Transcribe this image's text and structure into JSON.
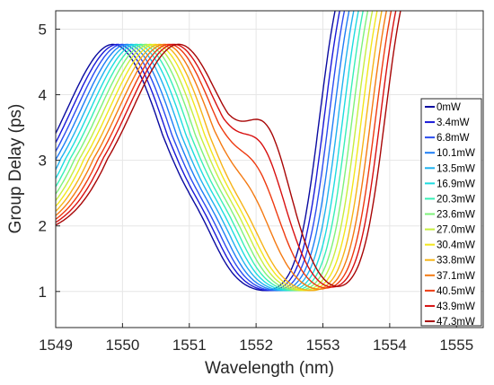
{
  "chart_data": {
    "type": "line",
    "title": "",
    "xlabel": "Wavelength (nm)",
    "ylabel": "Group Delay (ps)",
    "xlim": [
      1549,
      1555.4
    ],
    "ylim": [
      0.45,
      5.28
    ],
    "xticks": [
      1549,
      1550,
      1551,
      1552,
      1553,
      1554,
      1555
    ],
    "yticks": [
      1,
      2,
      3,
      4,
      5
    ],
    "grid": true,
    "legend_position": "right",
    "series": [
      {
        "name": "0mW",
        "color": "#0a0aa0",
        "shift": 0.0,
        "hump": 0.0
      },
      {
        "name": "3.4mW",
        "color": "#1a1ad8",
        "shift": 0.07,
        "hump": 0.0
      },
      {
        "name": "6.8mW",
        "color": "#2a4cf0",
        "shift": 0.14,
        "hump": 0.0
      },
      {
        "name": "10.1mW",
        "color": "#1e7ef6",
        "shift": 0.21,
        "hump": 0.0
      },
      {
        "name": "13.5mW",
        "color": "#1fb2f0",
        "shift": 0.28,
        "hump": 0.0
      },
      {
        "name": "16.9mW",
        "color": "#1ddce0",
        "shift": 0.35,
        "hump": 0.0
      },
      {
        "name": "20.3mW",
        "color": "#38efb6",
        "shift": 0.42,
        "hump": 0.0
      },
      {
        "name": "23.6mW",
        "color": "#7ef27a",
        "shift": 0.49,
        "hump": 0.0
      },
      {
        "name": "27.0mW",
        "color": "#c6ee40",
        "shift": 0.56,
        "hump": 0.0
      },
      {
        "name": "30.4mW",
        "color": "#f2e61c",
        "shift": 0.63,
        "hump": 0.0
      },
      {
        "name": "33.8mW",
        "color": "#f6b418",
        "shift": 0.7,
        "hump": 0.0
      },
      {
        "name": "37.1mW",
        "color": "#f47a12",
        "shift": 0.77,
        "hump": 0.35
      },
      {
        "name": "40.5mW",
        "color": "#ee3a10",
        "shift": 0.84,
        "hump": 0.75
      },
      {
        "name": "43.9mW",
        "color": "#d81010",
        "shift": 0.91,
        "hump": 1.1
      },
      {
        "name": "47.3mW",
        "color": "#a80606",
        "shift": 0.98,
        "hump": 1.4
      }
    ]
  }
}
